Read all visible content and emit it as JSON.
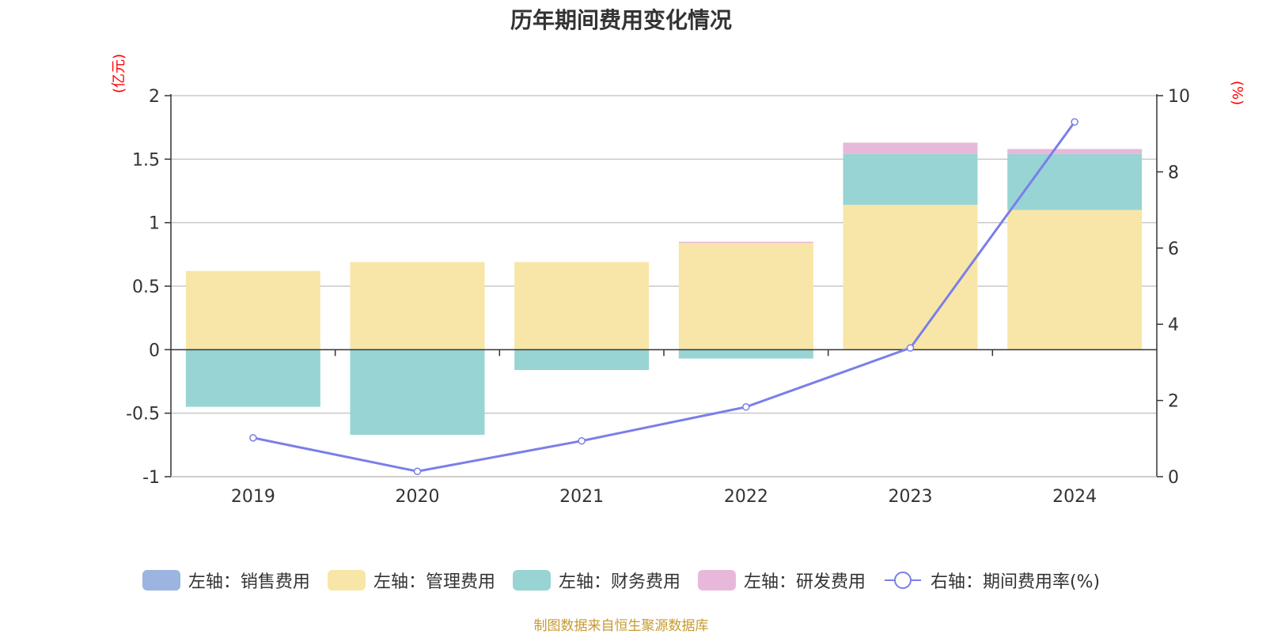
{
  "chart_data": {
    "type": "bar",
    "title": "历年期间费用变化情况",
    "categories": [
      "2019",
      "2020",
      "2021",
      "2022",
      "2023",
      "2024"
    ],
    "left_axis": {
      "unit_label": "(亿元)",
      "ylim": [
        -1,
        2
      ],
      "ticks": [
        "2",
        "1.5",
        "1",
        "0.5",
        "0",
        "-0.5",
        "-1"
      ]
    },
    "right_axis": {
      "unit_label": "(%)",
      "ylim": [
        0,
        10
      ],
      "ticks": [
        "10",
        "8",
        "6",
        "4",
        "2",
        "0"
      ]
    },
    "series": [
      {
        "name": "左轴：销售费用",
        "axis": "left",
        "color": "#9bb5e0",
        "values": [
          0,
          0,
          0,
          0,
          0,
          0
        ]
      },
      {
        "name": "左轴：管理费用",
        "axis": "left",
        "color": "#f8e6a8",
        "values": [
          0.62,
          0.69,
          0.69,
          0.84,
          1.14,
          1.1
        ]
      },
      {
        "name": "左轴：财务费用",
        "axis": "left",
        "color": "#98d4d4",
        "values": [
          -0.45,
          -0.67,
          -0.16,
          -0.07,
          0.4,
          0.44
        ]
      },
      {
        "name": "左轴：研发费用",
        "axis": "left",
        "color": "#e8b8da",
        "values": [
          0,
          0,
          0,
          0.01,
          0.09,
          0.04
        ]
      },
      {
        "name": "右轴：期间费用率(%)",
        "axis": "right",
        "type": "line",
        "color": "#7a7fe8",
        "values": [
          1.02,
          0.14,
          0.94,
          1.83,
          3.38,
          9.31
        ]
      }
    ],
    "grid": true,
    "legend_position": "bottom"
  },
  "unit_color": "#ff0000",
  "source_text": "制图数据来自恒生聚源数据库",
  "source_color": "#c79a2e"
}
